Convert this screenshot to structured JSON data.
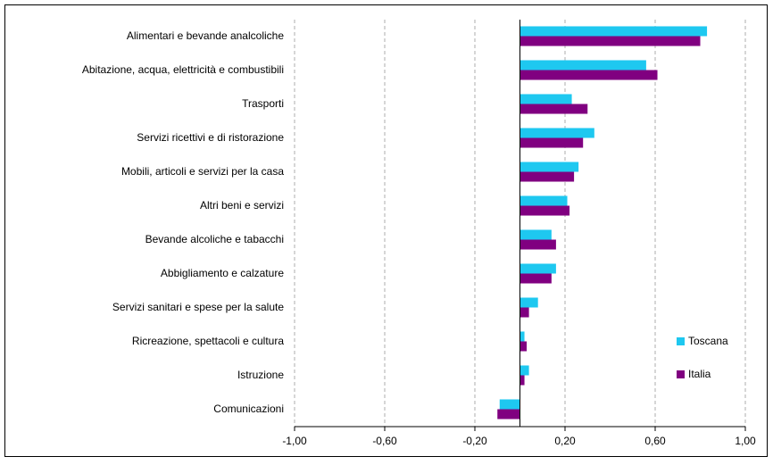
{
  "chart_data": {
    "type": "hbar",
    "categories": [
      "Alimentari e bevande analcoliche",
      "Abitazione, acqua, elettricità e combustibili",
      "Trasporti",
      "Servizi ricettivi e di ristorazione",
      "Mobili, articoli e servizi per la casa",
      "Altri beni e servizi",
      "Bevande alcoliche e tabacchi",
      "Abbigliamento e calzature",
      "Servizi sanitari e spese per la salute",
      "Ricreazione, spettacoli e cultura",
      "Istruzione",
      "Comunicazioni"
    ],
    "series": [
      {
        "name": "Toscana",
        "color": "#1ec8f0",
        "values": [
          0.83,
          0.56,
          0.23,
          0.33,
          0.26,
          0.21,
          0.14,
          0.16,
          0.08,
          0.02,
          0.04,
          -0.09
        ]
      },
      {
        "name": "Italia",
        "color": "#800080",
        "values": [
          0.8,
          0.61,
          0.3,
          0.28,
          0.24,
          0.22,
          0.16,
          0.14,
          0.04,
          0.03,
          0.02,
          -0.1
        ]
      }
    ],
    "xlim": [
      -1,
      1
    ],
    "xticks": [
      {
        "value": -1,
        "label": "-1,00"
      },
      {
        "value": -0.6,
        "label": "-0,60"
      },
      {
        "value": -0.2,
        "label": "-0,20"
      },
      {
        "value": 0.2,
        "label": "0,20"
      },
      {
        "value": 0.6,
        "label": "0,60"
      },
      {
        "value": 1,
        "label": "1,00"
      }
    ],
    "grid": true,
    "legend": "bottom-right"
  }
}
